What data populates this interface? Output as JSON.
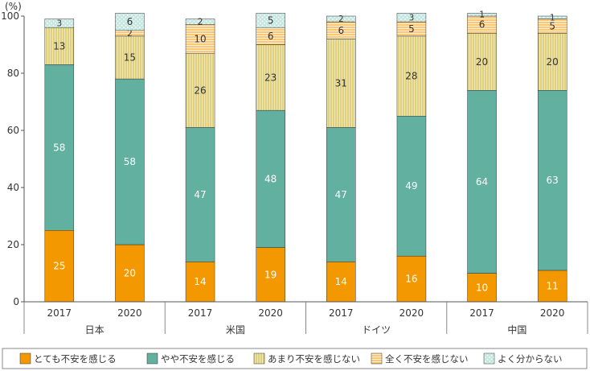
{
  "chart_data": {
    "type": "bar",
    "stacked": true,
    "percent": true,
    "yunit": "(%)",
    "ylim": [
      0,
      100
    ],
    "yticks": [
      0,
      20,
      40,
      60,
      80,
      100
    ],
    "grid": false,
    "legend_position": "bottom",
    "groups": [
      {
        "name": "日本",
        "years": [
          "2017",
          "2020"
        ]
      },
      {
        "name": "米国",
        "years": [
          "2017",
          "2020"
        ]
      },
      {
        "name": "ドイツ",
        "years": [
          "2017",
          "2020"
        ]
      },
      {
        "name": "中国",
        "years": [
          "2017",
          "2020"
        ]
      }
    ],
    "categories": [
      "日本 2017",
      "日本 2020",
      "米国 2017",
      "米国 2020",
      "ドイツ 2017",
      "ドイツ 2020",
      "中国 2017",
      "中国 2020"
    ],
    "series": [
      {
        "name": "とても不安を感じる",
        "color": "#f39800",
        "pattern": "solid",
        "values": [
          25,
          20,
          14,
          19,
          14,
          16,
          10,
          11
        ]
      },
      {
        "name": "やや不安を感じる",
        "color": "#62b0a0",
        "pattern": "solid",
        "values": [
          58,
          58,
          47,
          48,
          47,
          49,
          64,
          63
        ]
      },
      {
        "name": "あまり不安を感じない",
        "color": "#efe7b4",
        "stripe": "#c9b440",
        "pattern": "vertical-lines",
        "values": [
          13,
          15,
          26,
          23,
          31,
          28,
          20,
          20
        ]
      },
      {
        "name": "全く不安を感じない",
        "color": "#fff0d8",
        "stripe": "#f39800",
        "pattern": "horizontal-lines",
        "values": [
          0,
          2,
          10,
          6,
          6,
          5,
          6,
          5
        ]
      },
      {
        "name": "よく分からない",
        "color": "#c6e7e0",
        "stripe": "#ffffff",
        "pattern": "dots",
        "values": [
          3,
          6,
          2,
          5,
          2,
          3,
          1,
          1
        ]
      }
    ]
  }
}
